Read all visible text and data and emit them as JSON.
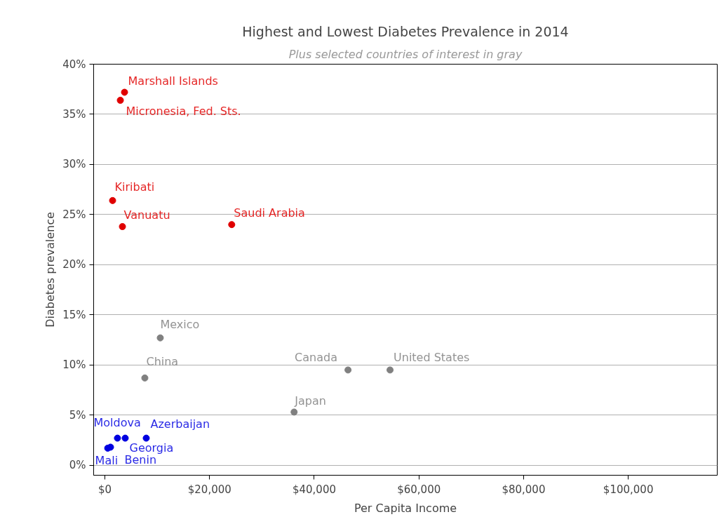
{
  "chart_data": {
    "type": "scatter",
    "title": "Highest and Lowest Diabetes Prevalence in 2014",
    "subtitle": "Plus selected countries of interest in gray",
    "xlabel": "Per Capita Income",
    "ylabel": "Diabetes prevalence",
    "xlim": [
      -2150,
      117000
    ],
    "ylim": [
      -1,
      40
    ],
    "xticks": [
      {
        "value": 0,
        "label": "$0"
      },
      {
        "value": 20000,
        "label": "$20,000"
      },
      {
        "value": 40000,
        "label": "$40,000"
      },
      {
        "value": 60000,
        "label": "$60,000"
      },
      {
        "value": 80000,
        "label": "$80,000"
      },
      {
        "value": 100000,
        "label": "$100,000"
      }
    ],
    "yticks": [
      {
        "value": 0,
        "label": "0%"
      },
      {
        "value": 5,
        "label": "5%"
      },
      {
        "value": 10,
        "label": "10%"
      },
      {
        "value": 15,
        "label": "15%"
      },
      {
        "value": 20,
        "label": "20%"
      },
      {
        "value": 25,
        "label": "25%"
      },
      {
        "value": 30,
        "label": "30%"
      },
      {
        "value": 35,
        "label": "35%"
      },
      {
        "value": 40,
        "label": "40%"
      }
    ],
    "grid": "y",
    "marker": "circle",
    "series": [
      {
        "color": "#e00000",
        "x": [
          3750,
          2950,
          1470,
          3350,
          24230
        ],
        "values": [
          37.2,
          36.4,
          26.4,
          23.8,
          24.0
        ]
      },
      {
        "color": "#808080",
        "x": [
          10580,
          7630,
          46450,
          54480,
          36150
        ],
        "values": [
          12.7,
          8.7,
          9.5,
          9.5,
          5.3
        ]
      },
      {
        "color": "#0000e0",
        "x": [
          7900,
          2400,
          3880,
          540,
          1070
        ],
        "values": [
          2.7,
          2.7,
          2.7,
          1.7,
          1.8
        ]
      }
    ],
    "annotations": [
      {
        "text": "Marshall Islands",
        "x": 3750,
        "y": 37.2
      },
      {
        "text": "Micronesia, Fed. Sts.",
        "x": 2950,
        "y": 36.4
      },
      {
        "text": "Kiribati",
        "x": 1470,
        "y": 26.4
      },
      {
        "text": "Vanuatu",
        "x": 3350,
        "y": 23.8
      },
      {
        "text": "Saudi Arabia",
        "x": 24230,
        "y": 24.0
      },
      {
        "text": "Mexico",
        "x": 10580,
        "y": 12.7
      },
      {
        "text": "China",
        "x": 7630,
        "y": 8.7
      },
      {
        "text": "Canada",
        "x": 46450,
        "y": 9.5
      },
      {
        "text": "United States",
        "x": 54480,
        "y": 9.5
      },
      {
        "text": "Japan",
        "x": 36150,
        "y": 5.3
      },
      {
        "text": "Azerbaijan",
        "x": 7900,
        "y": 2.7
      },
      {
        "text": "Moldova",
        "x": 2400,
        "y": 2.7
      },
      {
        "text": "Georgia",
        "x": 3880,
        "y": 2.7
      },
      {
        "text": "Mali",
        "x": 540,
        "y": 1.7
      },
      {
        "text": "Benin",
        "x": 1070,
        "y": 1.8
      }
    ]
  }
}
